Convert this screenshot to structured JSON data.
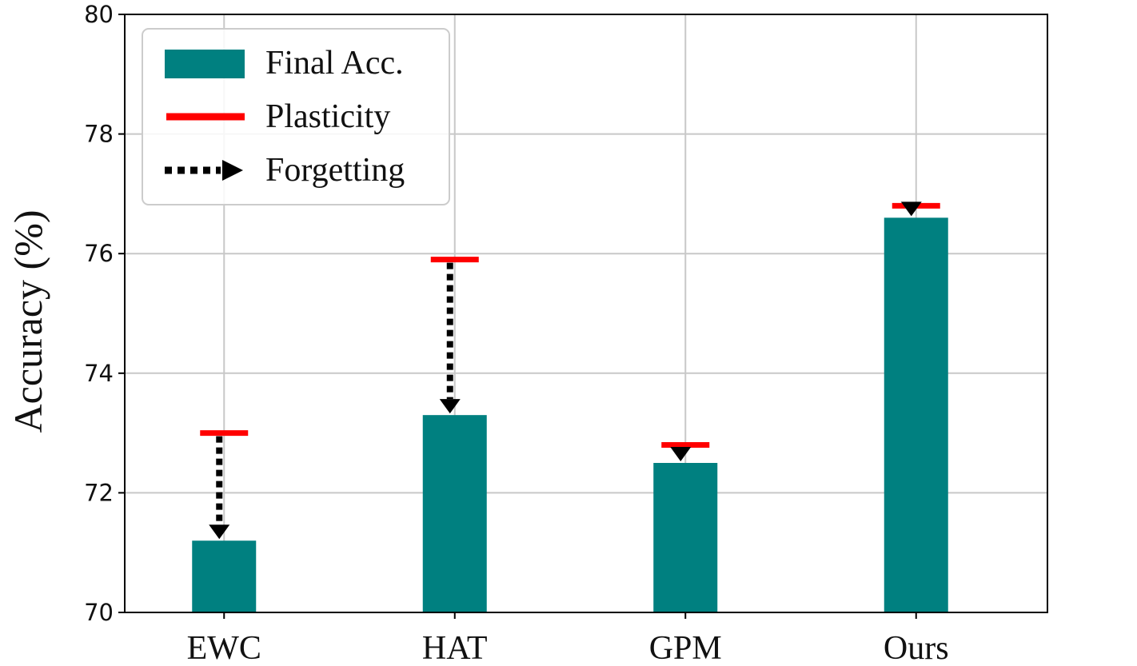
{
  "chart_data": {
    "type": "bar",
    "categories": [
      "EWC",
      "HAT",
      "GPM",
      "Ours"
    ],
    "series": [
      {
        "name": "Final Acc.",
        "values": [
          71.2,
          73.3,
          72.5,
          76.6
        ]
      },
      {
        "name": "Plasticity",
        "values": [
          73.0,
          75.9,
          72.8,
          76.8
        ]
      }
    ],
    "forgetting_label": "Forgetting",
    "xlabel": "",
    "ylabel": "Accuracy (%)",
    "ylim": [
      70,
      80
    ],
    "yticks": [
      70,
      72,
      74,
      76,
      78,
      80
    ],
    "grid": true,
    "legend_position": "top-left",
    "colors": {
      "bar": "#008080",
      "plasticity": "#ff0000",
      "forgetting": "#000000"
    }
  }
}
